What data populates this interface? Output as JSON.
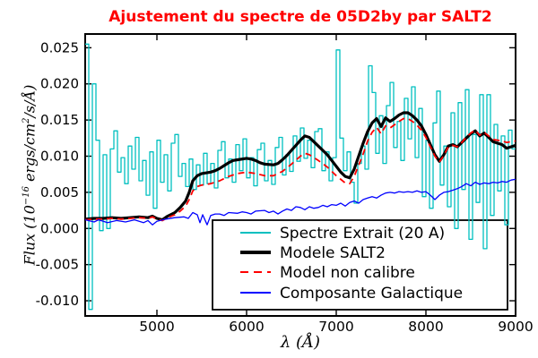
{
  "axes": {
    "ylabel_prefix": "Flux (10",
    "ylabel_sup1": "−16",
    "ylabel_mid": " ergs/cm",
    "ylabel_sup2": "2",
    "ylabel_suffix": "/s/Å)",
    "xlabel": "λ (Å)"
  },
  "chart_data": {
    "type": "line",
    "title": "Ajustement du spectre de 05D2by par SALT2",
    "title_color": "#ff0000",
    "xlabel": "λ (Å)",
    "ylabel": "Flux (10^-16 ergs/cm^2/s/Å)",
    "xlim": [
      4200,
      9000
    ],
    "ylim": [
      -0.0121,
      0.0269
    ],
    "xticks": [
      5000,
      6000,
      7000,
      8000,
      9000
    ],
    "yticks": [
      0.025,
      0.02,
      0.015,
      0.01,
      0.005,
      0.0,
      -0.005,
      -0.01
    ],
    "ytick_labels": [
      "0.025",
      "0.020",
      "0.015",
      "0.010",
      "0.005",
      "0.000",
      "-0.005",
      "-0.010"
    ],
    "grid": false,
    "legend_position": "lower center-right",
    "series": [
      {
        "name": "Spectre Extrait (20 A)",
        "color": "#00bfbf",
        "style": "steps",
        "line_width": 1.3,
        "bin_start": 4200,
        "bin_width": 40,
        "values": [
          0.0255,
          -0.0112,
          0.02,
          0.0122,
          -0.0003,
          0.0102,
          0.0,
          0.011,
          0.0135,
          0.0078,
          0.0098,
          0.0062,
          0.0114,
          0.0082,
          0.0126,
          0.0066,
          0.0094,
          0.0046,
          0.0106,
          0.0028,
          0.0122,
          0.0064,
          0.0102,
          0.0052,
          0.0118,
          0.013,
          0.0072,
          0.009,
          0.0058,
          0.0096,
          0.0054,
          0.0088,
          0.006,
          0.0104,
          0.0062,
          0.009,
          0.0056,
          0.0108,
          0.012,
          0.007,
          0.0096,
          0.0064,
          0.0116,
          0.008,
          0.0124,
          0.007,
          0.0098,
          0.0059,
          0.0109,
          0.0118,
          0.0066,
          0.0094,
          0.0061,
          0.0112,
          0.0126,
          0.0074,
          0.0102,
          0.0079,
          0.0128,
          0.0093,
          0.0139,
          0.0097,
          0.0122,
          0.0084,
          0.0134,
          0.0138,
          0.008,
          0.0106,
          0.0066,
          0.0098,
          0.0247,
          0.0125,
          0.008,
          0.0106,
          0.0064,
          0.0035,
          0.009,
          0.0114,
          0.0082,
          0.0225,
          0.0188,
          0.0104,
          0.0156,
          0.009,
          0.017,
          0.0202,
          0.0112,
          0.0148,
          0.0094,
          0.018,
          0.0124,
          0.0196,
          0.0098,
          0.0166,
          0.0044,
          0.0122,
          0.0028,
          0.0146,
          0.019,
          0.006,
          0.0114,
          0.003,
          0.016,
          0.0,
          0.0174,
          0.0054,
          0.0192,
          -0.0015,
          0.013,
          0.0036,
          0.0185,
          -0.0028,
          0.0185,
          0.0018,
          0.0144,
          0.0052,
          0.0128,
          0.0005,
          0.0136,
          0.011
        ]
      },
      {
        "name": "Modele SALT2",
        "color": "#000000",
        "style": "line",
        "line_width": 3.2,
        "points": [
          [
            4200,
            0.0013
          ],
          [
            4300,
            0.0014
          ],
          [
            4400,
            0.0014
          ],
          [
            4500,
            0.0015
          ],
          [
            4600,
            0.0014
          ],
          [
            4700,
            0.0015
          ],
          [
            4800,
            0.0016
          ],
          [
            4900,
            0.0015
          ],
          [
            4950,
            0.0017
          ],
          [
            5000,
            0.0014
          ],
          [
            5060,
            0.0012
          ],
          [
            5120,
            0.0017
          ],
          [
            5200,
            0.0022
          ],
          [
            5260,
            0.0029
          ],
          [
            5320,
            0.0038
          ],
          [
            5360,
            0.005
          ],
          [
            5400,
            0.0066
          ],
          [
            5450,
            0.0073
          ],
          [
            5500,
            0.0076
          ],
          [
            5600,
            0.0078
          ],
          [
            5650,
            0.008
          ],
          [
            5700,
            0.0083
          ],
          [
            5750,
            0.0087
          ],
          [
            5800,
            0.0091
          ],
          [
            5850,
            0.0094
          ],
          [
            5900,
            0.0095
          ],
          [
            6000,
            0.0097
          ],
          [
            6050,
            0.0096
          ],
          [
            6100,
            0.0094
          ],
          [
            6150,
            0.0091
          ],
          [
            6200,
            0.0089
          ],
          [
            6300,
            0.0088
          ],
          [
            6350,
            0.009
          ],
          [
            6400,
            0.0095
          ],
          [
            6450,
            0.0101
          ],
          [
            6500,
            0.0108
          ],
          [
            6550,
            0.0115
          ],
          [
            6600,
            0.0122
          ],
          [
            6650,
            0.0128
          ],
          [
            6700,
            0.0126
          ],
          [
            6750,
            0.012
          ],
          [
            6800,
            0.0114
          ],
          [
            6850,
            0.0108
          ],
          [
            6900,
            0.0102
          ],
          [
            6950,
            0.0094
          ],
          [
            7000,
            0.0086
          ],
          [
            7050,
            0.0078
          ],
          [
            7100,
            0.0072
          ],
          [
            7150,
            0.007
          ],
          [
            7200,
            0.0082
          ],
          [
            7250,
            0.01
          ],
          [
            7300,
            0.0118
          ],
          [
            7350,
            0.0134
          ],
          [
            7400,
            0.0146
          ],
          [
            7450,
            0.0152
          ],
          [
            7500,
            0.0141
          ],
          [
            7550,
            0.0153
          ],
          [
            7600,
            0.0148
          ],
          [
            7650,
            0.0152
          ],
          [
            7700,
            0.0157
          ],
          [
            7750,
            0.016
          ],
          [
            7800,
            0.016
          ],
          [
            7850,
            0.0156
          ],
          [
            7900,
            0.015
          ],
          [
            7950,
            0.0142
          ],
          [
            8000,
            0.013
          ],
          [
            8050,
            0.0116
          ],
          [
            8100,
            0.0102
          ],
          [
            8150,
            0.0093
          ],
          [
            8200,
            0.0102
          ],
          [
            8250,
            0.0114
          ],
          [
            8300,
            0.0116
          ],
          [
            8350,
            0.0113
          ],
          [
            8400,
            0.0119
          ],
          [
            8450,
            0.0125
          ],
          [
            8500,
            0.0131
          ],
          [
            8550,
            0.0135
          ],
          [
            8600,
            0.0128
          ],
          [
            8650,
            0.0132
          ],
          [
            8700,
            0.0126
          ],
          [
            8750,
            0.012
          ],
          [
            8800,
            0.0118
          ],
          [
            8850,
            0.0116
          ],
          [
            8900,
            0.0111
          ],
          [
            8950,
            0.0113
          ],
          [
            9000,
            0.0115
          ]
        ]
      },
      {
        "name": "Model non calibre",
        "color": "#ff0000",
        "style": "dashed",
        "line_width": 1.8,
        "points": [
          [
            4200,
            0.0012
          ],
          [
            4300,
            0.0013
          ],
          [
            4400,
            0.0013
          ],
          [
            4500,
            0.0014
          ],
          [
            4600,
            0.0013
          ],
          [
            4700,
            0.0014
          ],
          [
            4800,
            0.0015
          ],
          [
            4900,
            0.0014
          ],
          [
            4950,
            0.0016
          ],
          [
            5000,
            0.0013
          ],
          [
            5060,
            0.0011
          ],
          [
            5120,
            0.0015
          ],
          [
            5200,
            0.0019
          ],
          [
            5260,
            0.0024
          ],
          [
            5320,
            0.0031
          ],
          [
            5360,
            0.004
          ],
          [
            5400,
            0.0052
          ],
          [
            5450,
            0.0058
          ],
          [
            5500,
            0.006
          ],
          [
            5600,
            0.0062
          ],
          [
            5700,
            0.0066
          ],
          [
            5800,
            0.0072
          ],
          [
            5900,
            0.0076
          ],
          [
            6000,
            0.0078
          ],
          [
            6100,
            0.0076
          ],
          [
            6200,
            0.0073
          ],
          [
            6300,
            0.0073
          ],
          [
            6400,
            0.0079
          ],
          [
            6500,
            0.0089
          ],
          [
            6600,
            0.01
          ],
          [
            6650,
            0.0104
          ],
          [
            6700,
            0.0102
          ],
          [
            6800,
            0.0094
          ],
          [
            6900,
            0.0085
          ],
          [
            7000,
            0.0073
          ],
          [
            7100,
            0.0063
          ],
          [
            7150,
            0.0062
          ],
          [
            7200,
            0.0072
          ],
          [
            7300,
            0.0103
          ],
          [
            7350,
            0.0121
          ],
          [
            7400,
            0.0133
          ],
          [
            7450,
            0.014
          ],
          [
            7500,
            0.0131
          ],
          [
            7550,
            0.0142
          ],
          [
            7600,
            0.0139
          ],
          [
            7700,
            0.0148
          ],
          [
            7750,
            0.0152
          ],
          [
            7800,
            0.0152
          ],
          [
            7850,
            0.0148
          ],
          [
            7900,
            0.0143
          ],
          [
            7950,
            0.0136
          ],
          [
            8000,
            0.0126
          ],
          [
            8050,
            0.0113
          ],
          [
            8100,
            0.01
          ],
          [
            8150,
            0.0092
          ],
          [
            8200,
            0.0101
          ],
          [
            8250,
            0.0113
          ],
          [
            8300,
            0.0115
          ],
          [
            8350,
            0.0113
          ],
          [
            8400,
            0.0119
          ],
          [
            8450,
            0.0126
          ],
          [
            8500,
            0.0132
          ],
          [
            8550,
            0.0136
          ],
          [
            8600,
            0.0129
          ],
          [
            8650,
            0.0133
          ],
          [
            8700,
            0.0128
          ],
          [
            8750,
            0.0123
          ],
          [
            8800,
            0.0122
          ],
          [
            8850,
            0.0121
          ],
          [
            8900,
            0.0119
          ],
          [
            8950,
            0.012
          ],
          [
            9000,
            0.0121
          ]
        ]
      },
      {
        "name": "Composante Galactique",
        "color": "#0000ff",
        "style": "line",
        "line_width": 1.3,
        "points": [
          [
            4200,
            0.0012
          ],
          [
            4300,
            0.0009
          ],
          [
            4350,
            0.0012
          ],
          [
            4450,
            0.0008
          ],
          [
            4550,
            0.0011
          ],
          [
            4650,
            0.0009
          ],
          [
            4750,
            0.0012
          ],
          [
            4850,
            0.0008
          ],
          [
            4900,
            0.0011
          ],
          [
            4950,
            0.0005
          ],
          [
            5000,
            0.001
          ],
          [
            5100,
            0.0013
          ],
          [
            5200,
            0.0015
          ],
          [
            5300,
            0.0016
          ],
          [
            5350,
            0.0014
          ],
          [
            5400,
            0.0022
          ],
          [
            5450,
            0.0019
          ],
          [
            5480,
            0.0008
          ],
          [
            5510,
            0.0019
          ],
          [
            5560,
            0.0005
          ],
          [
            5600,
            0.0018
          ],
          [
            5650,
            0.002
          ],
          [
            5700,
            0.002
          ],
          [
            5750,
            0.0018
          ],
          [
            5800,
            0.0022
          ],
          [
            5900,
            0.0021
          ],
          [
            5950,
            0.0023
          ],
          [
            6000,
            0.0022
          ],
          [
            6050,
            0.002
          ],
          [
            6100,
            0.0024
          ],
          [
            6200,
            0.0025
          ],
          [
            6250,
            0.0022
          ],
          [
            6300,
            0.0024
          ],
          [
            6350,
            0.002
          ],
          [
            6400,
            0.0024
          ],
          [
            6450,
            0.0027
          ],
          [
            6500,
            0.0025
          ],
          [
            6550,
            0.003
          ],
          [
            6600,
            0.0029
          ],
          [
            6650,
            0.0026
          ],
          [
            6700,
            0.003
          ],
          [
            6750,
            0.0028
          ],
          [
            6800,
            0.0029
          ],
          [
            6850,
            0.0032
          ],
          [
            6900,
            0.003
          ],
          [
            6950,
            0.0033
          ],
          [
            7000,
            0.0032
          ],
          [
            7050,
            0.0035
          ],
          [
            7100,
            0.0031
          ],
          [
            7150,
            0.0036
          ],
          [
            7200,
            0.0038
          ],
          [
            7250,
            0.0035
          ],
          [
            7300,
            0.004
          ],
          [
            7350,
            0.0042
          ],
          [
            7400,
            0.0044
          ],
          [
            7450,
            0.0042
          ],
          [
            7500,
            0.0046
          ],
          [
            7550,
            0.0049
          ],
          [
            7600,
            0.005
          ],
          [
            7650,
            0.0049
          ],
          [
            7700,
            0.0051
          ],
          [
            7750,
            0.005
          ],
          [
            7800,
            0.0051
          ],
          [
            7850,
            0.005
          ],
          [
            7900,
            0.0052
          ],
          [
            7950,
            0.005
          ],
          [
            8000,
            0.0051
          ],
          [
            8050,
            0.0046
          ],
          [
            8100,
            0.004
          ],
          [
            8150,
            0.0046
          ],
          [
            8200,
            0.005
          ],
          [
            8250,
            0.0051
          ],
          [
            8300,
            0.0053
          ],
          [
            8350,
            0.0055
          ],
          [
            8400,
            0.0058
          ],
          [
            8450,
            0.0062
          ],
          [
            8500,
            0.0059
          ],
          [
            8550,
            0.0064
          ],
          [
            8600,
            0.0061
          ],
          [
            8650,
            0.0063
          ],
          [
            8700,
            0.0062
          ],
          [
            8750,
            0.0064
          ],
          [
            8800,
            0.0063
          ],
          [
            8850,
            0.0065
          ],
          [
            8900,
            0.0064
          ],
          [
            8950,
            0.0067
          ],
          [
            9000,
            0.0068
          ]
        ]
      }
    ]
  }
}
